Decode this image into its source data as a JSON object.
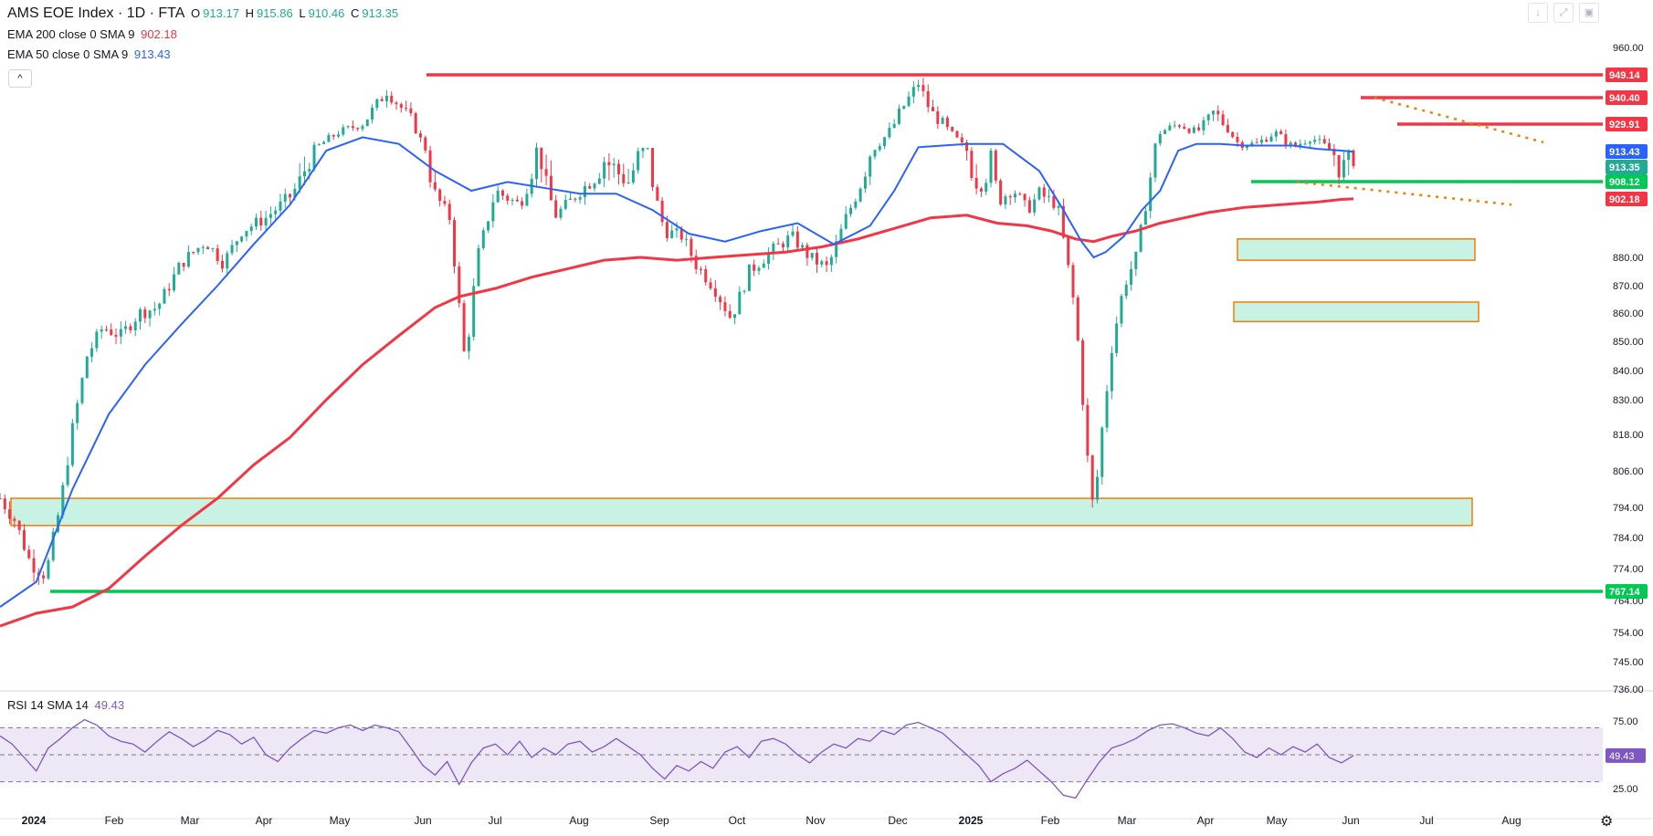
{
  "header": {
    "symbol": "AMS EOE Index · 1D · FTA",
    "o_label": "O",
    "o_value": "913.17",
    "h_label": "H",
    "h_value": "915.86",
    "l_label": "L",
    "l_value": "910.46",
    "c_label": "C",
    "c_value": "913.35",
    "ema200_label": "EMA 200 close 0 SMA 9",
    "ema200_value": "902.18",
    "ema50_label": "EMA 50 close 0 SMA 9",
    "ema50_value": "913.43",
    "rsi_label": "RSI 14 SMA 14",
    "rsi_value": "49.43",
    "collapse_icon": "chevron-up-icon"
  },
  "toolbar_icons": [
    "arrow-down-icon",
    "fullscreen-icon",
    "restore-icon"
  ],
  "colors": {
    "up": "#22ab94",
    "down": "#f23645",
    "ema50": "#2962ff",
    "ema200": "#f23645",
    "rsi": "#7e57c2",
    "zone_fill": "#c8f2e3",
    "zone_border": "#f57c00",
    "support_line": "#00c853",
    "resistance_line": "#f23645",
    "trend_line": "#f57c00"
  },
  "chart_data": {
    "type": "candlestick",
    "price_axis_ticks": [
      "960.00",
      "949.14",
      "940.40",
      "929.91",
      "913.43",
      "913.35",
      "908.12",
      "902.18",
      "880.00",
      "870.00",
      "860.00",
      "850.00",
      "840.00",
      "830.00",
      "818.00",
      "806.00",
      "794.00",
      "784.00",
      "774.00",
      "767.14",
      "764.00",
      "754.00",
      "745.00",
      "736.00"
    ],
    "x_ticks": [
      "2024",
      "Feb",
      "Mar",
      "Apr",
      "May",
      "Jun",
      "Jul",
      "Aug",
      "Sep",
      "Oct",
      "Nov",
      "Dec",
      "2025",
      "Feb",
      "Mar",
      "Apr",
      "May",
      "Jun",
      "Jul",
      "Aug"
    ],
    "price_labels": [
      {
        "text": "949.14",
        "color": "#f23645"
      },
      {
        "text": "940.40",
        "color": "#f23645"
      },
      {
        "text": "929.91",
        "color": "#f23645"
      },
      {
        "text": "913.43",
        "color": "#2962ff"
      },
      {
        "text": "913.35",
        "color": "#22ab94"
      },
      {
        "text": "908.12",
        "color": "#00c853"
      },
      {
        "text": "902.18",
        "color": "#f23645"
      },
      {
        "text": "767.14",
        "color": "#00c853"
      }
    ],
    "horizontal_lines": [
      {
        "price": 949.14,
        "from": "Jun 2024",
        "to": "Aug 2025",
        "color": "#f23645"
      },
      {
        "price": 940.4,
        "from": "Jun 2025",
        "to": "Aug 2025",
        "color": "#f23645"
      },
      {
        "price": 929.91,
        "from": "Jun 2025",
        "to": "Aug 2025",
        "color": "#f23645"
      },
      {
        "price": 908.12,
        "from": "Apr 2025",
        "to": "Aug 2025",
        "color": "#00c853"
      },
      {
        "price": 767.14,
        "from": "Jan 2024",
        "to": "Aug 2025",
        "color": "#00c853"
      }
    ],
    "zones": [
      {
        "top": 797,
        "bottom": 788,
        "from": "Jan 2024",
        "to": "Jul 2025"
      },
      {
        "top": 887,
        "bottom": 879,
        "from": "Apr 2025",
        "to": "Jul 2025"
      },
      {
        "top": 864,
        "bottom": 857,
        "from": "Apr 2025",
        "to": "Jul 2025"
      }
    ],
    "trend_lines": [
      {
        "from_price": 940.4,
        "to_price": 919,
        "from": "Jun 2025",
        "to": "Aug 2025"
      },
      {
        "from_price": 908,
        "to_price": 900,
        "from": "May 2025",
        "to": "Aug 2025"
      }
    ],
    "close_path": [
      [
        0,
        797
      ],
      [
        12,
        790
      ],
      [
        25,
        776
      ],
      [
        38,
        772
      ],
      [
        50,
        795
      ],
      [
        60,
        820
      ],
      [
        72,
        845
      ],
      [
        85,
        855
      ],
      [
        100,
        852
      ],
      [
        115,
        860
      ],
      [
        130,
        862
      ],
      [
        150,
        878
      ],
      [
        170,
        886
      ],
      [
        185,
        878
      ],
      [
        200,
        890
      ],
      [
        220,
        895
      ],
      [
        240,
        903
      ],
      [
        260,
        915
      ],
      [
        280,
        925
      ],
      [
        300,
        930
      ],
      [
        320,
        943
      ],
      [
        340,
        932
      ],
      [
        360,
        904
      ],
      [
        372,
        895
      ],
      [
        385,
        842
      ],
      [
        395,
        880
      ],
      [
        410,
        905
      ],
      [
        430,
        900
      ],
      [
        445,
        916
      ],
      [
        460,
        896
      ],
      [
        480,
        905
      ],
      [
        500,
        912
      ],
      [
        520,
        908
      ],
      [
        535,
        916
      ],
      [
        550,
        890
      ],
      [
        565,
        888
      ],
      [
        575,
        878
      ],
      [
        590,
        870
      ],
      [
        605,
        858
      ],
      [
        620,
        875
      ],
      [
        640,
        883
      ],
      [
        655,
        888
      ],
      [
        670,
        880
      ],
      [
        685,
        876
      ],
      [
        700,
        895
      ],
      [
        715,
        910
      ],
      [
        730,
        920
      ],
      [
        745,
        935
      ],
      [
        760,
        946
      ],
      [
        770,
        935
      ],
      [
        780,
        930
      ],
      [
        795,
        918
      ],
      [
        810,
        906
      ],
      [
        820,
        912
      ],
      [
        828,
        902
      ],
      [
        838,
        906
      ],
      [
        850,
        898
      ],
      [
        860,
        904
      ],
      [
        875,
        900
      ],
      [
        890,
        860
      ],
      [
        900,
        810
      ],
      [
        905,
        792
      ],
      [
        912,
        820
      ],
      [
        920,
        848
      ],
      [
        930,
        870
      ],
      [
        940,
        880
      ],
      [
        950,
        905
      ],
      [
        960,
        925
      ],
      [
        975,
        930
      ],
      [
        990,
        925
      ],
      [
        1005,
        935
      ],
      [
        1015,
        928
      ],
      [
        1025,
        918
      ],
      [
        1040,
        918
      ],
      [
        1055,
        925
      ],
      [
        1070,
        916
      ],
      [
        1085,
        922
      ],
      [
        1100,
        915
      ],
      [
        1110,
        910
      ],
      [
        1120,
        913
      ]
    ],
    "ema50": [
      [
        0,
        762
      ],
      [
        30,
        770
      ],
      [
        60,
        800
      ],
      [
        90,
        825
      ],
      [
        120,
        842
      ],
      [
        150,
        856
      ],
      [
        180,
        870
      ],
      [
        210,
        885
      ],
      [
        240,
        900
      ],
      [
        270,
        914
      ],
      [
        300,
        922
      ],
      [
        330,
        918
      ],
      [
        360,
        910
      ],
      [
        390,
        905
      ],
      [
        420,
        908
      ],
      [
        450,
        906
      ],
      [
        480,
        904
      ],
      [
        510,
        904
      ],
      [
        540,
        898
      ],
      [
        570,
        889
      ],
      [
        600,
        886
      ],
      [
        630,
        890
      ],
      [
        660,
        893
      ],
      [
        690,
        885
      ],
      [
        720,
        892
      ],
      [
        740,
        905
      ],
      [
        760,
        916
      ],
      [
        780,
        917
      ],
      [
        800,
        918
      ],
      [
        830,
        918
      ],
      [
        860,
        910
      ],
      [
        880,
        898
      ],
      [
        895,
        886
      ],
      [
        905,
        880
      ],
      [
        915,
        882
      ],
      [
        930,
        888
      ],
      [
        945,
        898
      ],
      [
        960,
        905
      ],
      [
        975,
        914
      ],
      [
        990,
        918
      ],
      [
        1010,
        918
      ],
      [
        1030,
        917
      ],
      [
        1050,
        917
      ],
      [
        1070,
        917
      ],
      [
        1090,
        915
      ],
      [
        1110,
        914
      ],
      [
        1120,
        913.4
      ]
    ],
    "ema200": [
      [
        0,
        756
      ],
      [
        30,
        760
      ],
      [
        60,
        762
      ],
      [
        90,
        768
      ],
      [
        120,
        778
      ],
      [
        150,
        788
      ],
      [
        180,
        797
      ],
      [
        210,
        808
      ],
      [
        240,
        817
      ],
      [
        270,
        830
      ],
      [
        300,
        842
      ],
      [
        330,
        852
      ],
      [
        360,
        862
      ],
      [
        380,
        866
      ],
      [
        410,
        869
      ],
      [
        440,
        873
      ],
      [
        470,
        876
      ],
      [
        500,
        879
      ],
      [
        530,
        880
      ],
      [
        560,
        879
      ],
      [
        590,
        880
      ],
      [
        620,
        881
      ],
      [
        650,
        882
      ],
      [
        680,
        884
      ],
      [
        710,
        887
      ],
      [
        740,
        891
      ],
      [
        770,
        895
      ],
      [
        800,
        896
      ],
      [
        825,
        893
      ],
      [
        850,
        892
      ],
      [
        870,
        890
      ],
      [
        890,
        887
      ],
      [
        905,
        886
      ],
      [
        920,
        888
      ],
      [
        940,
        890
      ],
      [
        960,
        893
      ],
      [
        980,
        895
      ],
      [
        1000,
        897
      ],
      [
        1030,
        899
      ],
      [
        1060,
        900
      ],
      [
        1090,
        901
      ],
      [
        1110,
        902
      ],
      [
        1120,
        902.2
      ]
    ],
    "rsi_levels": [
      70,
      50,
      30
    ],
    "rsi_ticks": [
      "75.00",
      "25.00"
    ],
    "rsi_series": [
      [
        0,
        64
      ],
      [
        10,
        58
      ],
      [
        20,
        48
      ],
      [
        30,
        38
      ],
      [
        40,
        55
      ],
      [
        50,
        62
      ],
      [
        60,
        70
      ],
      [
        70,
        76
      ],
      [
        80,
        72
      ],
      [
        90,
        64
      ],
      [
        100,
        60
      ],
      [
        110,
        58
      ],
      [
        120,
        52
      ],
      [
        130,
        60
      ],
      [
        140,
        67
      ],
      [
        150,
        62
      ],
      [
        160,
        56
      ],
      [
        170,
        61
      ],
      [
        180,
        68
      ],
      [
        190,
        65
      ],
      [
        200,
        58
      ],
      [
        210,
        63
      ],
      [
        220,
        50
      ],
      [
        230,
        45
      ],
      [
        240,
        55
      ],
      [
        250,
        62
      ],
      [
        260,
        68
      ],
      [
        270,
        66
      ],
      [
        280,
        70
      ],
      [
        290,
        72
      ],
      [
        300,
        68
      ],
      [
        310,
        72
      ],
      [
        320,
        70
      ],
      [
        330,
        67
      ],
      [
        340,
        55
      ],
      [
        350,
        42
      ],
      [
        360,
        35
      ],
      [
        370,
        45
      ],
      [
        380,
        28
      ],
      [
        390,
        44
      ],
      [
        400,
        55
      ],
      [
        410,
        58
      ],
      [
        420,
        50
      ],
      [
        430,
        60
      ],
      [
        440,
        48
      ],
      [
        450,
        55
      ],
      [
        460,
        50
      ],
      [
        470,
        58
      ],
      [
        480,
        60
      ],
      [
        490,
        52
      ],
      [
        500,
        56
      ],
      [
        510,
        62
      ],
      [
        520,
        56
      ],
      [
        530,
        50
      ],
      [
        540,
        40
      ],
      [
        550,
        32
      ],
      [
        560,
        42
      ],
      [
        570,
        38
      ],
      [
        580,
        45
      ],
      [
        590,
        40
      ],
      [
        600,
        52
      ],
      [
        610,
        56
      ],
      [
        620,
        48
      ],
      [
        630,
        60
      ],
      [
        640,
        62
      ],
      [
        650,
        58
      ],
      [
        660,
        50
      ],
      [
        670,
        44
      ],
      [
        680,
        52
      ],
      [
        690,
        58
      ],
      [
        700,
        55
      ],
      [
        710,
        62
      ],
      [
        720,
        60
      ],
      [
        730,
        68
      ],
      [
        740,
        65
      ],
      [
        750,
        72
      ],
      [
        760,
        74
      ],
      [
        770,
        70
      ],
      [
        780,
        66
      ],
      [
        790,
        58
      ],
      [
        800,
        50
      ],
      [
        810,
        42
      ],
      [
        820,
        30
      ],
      [
        830,
        36
      ],
      [
        840,
        40
      ],
      [
        850,
        46
      ],
      [
        860,
        38
      ],
      [
        870,
        30
      ],
      [
        880,
        20
      ],
      [
        890,
        18
      ],
      [
        900,
        32
      ],
      [
        910,
        45
      ],
      [
        920,
        55
      ],
      [
        930,
        58
      ],
      [
        940,
        62
      ],
      [
        950,
        68
      ],
      [
        960,
        72
      ],
      [
        970,
        73
      ],
      [
        980,
        70
      ],
      [
        990,
        66
      ],
      [
        1000,
        64
      ],
      [
        1010,
        70
      ],
      [
        1020,
        62
      ],
      [
        1030,
        52
      ],
      [
        1040,
        48
      ],
      [
        1050,
        55
      ],
      [
        1060,
        50
      ],
      [
        1070,
        56
      ],
      [
        1080,
        52
      ],
      [
        1090,
        58
      ],
      [
        1100,
        48
      ],
      [
        1110,
        44
      ],
      [
        1120,
        49.43
      ]
    ]
  }
}
